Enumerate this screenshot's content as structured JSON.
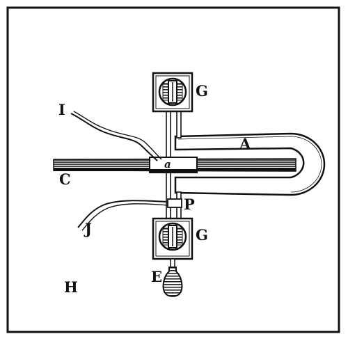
{
  "figure": {
    "ink_color": "#111111",
    "paper_color": "#ffffff",
    "labels": {
      "magnet": "A",
      "bar": "C",
      "handle": "E",
      "top_binding_post": "G",
      "bottom_binding_post": "G",
      "board": "H",
      "wire_upper": "I",
      "wire_lower": "J",
      "pivot": "P",
      "armature": "a"
    }
  }
}
